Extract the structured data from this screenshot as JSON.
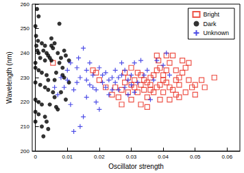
{
  "chart_data": {
    "type": "scatter",
    "x_label": "Oscillator strength",
    "y_label": "Wavelength (nm)",
    "xlim": [
      -0.001,
      0.064
    ],
    "xticks": [
      0,
      0.01,
      0.02,
      0.03,
      0.04,
      0.05,
      0.06
    ],
    "ylim": [
      200,
      260
    ],
    "yticks": [
      200,
      210,
      220,
      230,
      240,
      250,
      260
    ],
    "grid": false,
    "legend": "top-right",
    "series": [
      {
        "name": "Bright",
        "color": "#e8291c",
        "marker": "square",
        "x": [
          0.0055,
          0.018,
          0.019,
          0.024,
          0.026,
          0.025,
          0.027,
          0.028,
          0.029,
          0.03,
          0.031,
          0.032,
          0.033,
          0.034,
          0.035,
          0.036,
          0.037,
          0.038,
          0.039,
          0.0385,
          0.04,
          0.041,
          0.042,
          0.043,
          0.044,
          0.045,
          0.046,
          0.047,
          0.048,
          0.049,
          0.05,
          0.052,
          0.056,
          0.033,
          0.035,
          0.036,
          0.039,
          0.04,
          0.042,
          0.044,
          0.045,
          0.047,
          0.043,
          0.042,
          0.041,
          0.037,
          0.038,
          0.034,
          0.032,
          0.03,
          0.031,
          0.029,
          0.027,
          0.035,
          0.046,
          0.048,
          0.045,
          0.04,
          0.039,
          0.044,
          0.05,
          0.053,
          0.036,
          0.038,
          0.041,
          0.033,
          0.03,
          0.028,
          0.022,
          0.02
        ],
        "values": [
          236,
          233,
          232,
          223,
          222,
          226,
          225,
          228,
          230,
          227,
          229,
          232,
          231,
          229,
          228,
          227,
          231,
          239,
          234,
          237,
          229,
          228,
          226,
          225,
          233,
          230,
          232,
          234,
          229,
          226,
          227,
          229,
          230,
          219,
          222,
          225,
          221,
          224,
          221,
          223,
          222,
          224,
          239,
          236,
          233,
          224,
          226,
          225,
          224,
          221,
          226,
          224,
          219,
          218,
          237,
          236,
          227,
          231,
          227,
          229,
          223,
          226,
          230,
          233,
          239,
          227,
          234,
          232,
          226,
          229
        ]
      },
      {
        "name": "Dark",
        "color": "#000000",
        "marker": "circle",
        "x": [
          0.0005,
          0.001,
          0.0,
          0.0002,
          0.0008,
          0.0003,
          0.0006,
          0.001,
          0.0015,
          0.0,
          0.002,
          0.003,
          0.0025,
          0.0035,
          0.004,
          0.0045,
          0.005,
          0.006,
          0.005,
          0.0055,
          0.003,
          0.0,
          0.001,
          0.002,
          0.0035,
          0.004,
          0.0,
          0.0015,
          0.003,
          0.004,
          0.0055,
          0.006,
          0.0,
          0.001,
          0.002,
          0.0045,
          0.0065,
          0.007,
          0.0,
          0.001,
          0.003,
          0.0035,
          0.0,
          0.002,
          0.004,
          0.0025,
          0.007,
          0.008,
          0.0075,
          0.009,
          0.0085,
          0.0095,
          0.0105,
          0.009,
          0.0065,
          0.006,
          0.008,
          0.0105,
          0.0095,
          0.0075,
          0.0085,
          0.005
        ],
        "values": [
          258,
          255,
          251,
          247,
          245,
          243,
          241,
          240,
          238,
          236,
          244,
          243,
          241,
          240,
          239,
          238,
          246,
          244,
          243,
          242,
          237,
          234,
          233,
          232,
          231,
          229,
          228,
          227,
          226,
          225,
          224,
          222,
          221,
          220,
          219,
          219,
          218,
          217,
          216,
          215,
          214,
          212,
          212,
          210,
          209,
          206,
          240,
          238,
          236,
          241,
          234,
          239,
          237,
          230,
          232,
          229,
          224,
          228,
          221,
          252,
          231,
          237
        ]
      },
      {
        "name": "Unknown",
        "color": "#2020e0",
        "marker": "plus",
        "x": [
          0.008,
          0.009,
          0.01,
          0.011,
          0.012,
          0.012,
          0.013,
          0.014,
          0.0135,
          0.015,
          0.016,
          0.016,
          0.017,
          0.018,
          0.019,
          0.019,
          0.02,
          0.021,
          0.021,
          0.022,
          0.023,
          0.023,
          0.024,
          0.025,
          0.025,
          0.026,
          0.027,
          0.027,
          0.028,
          0.029,
          0.029,
          0.03,
          0.031,
          0.031,
          0.032,
          0.033,
          0.034,
          0.035,
          0.036,
          0.037,
          0.038,
          0.04,
          0.041,
          0.042,
          0.015,
          0.014,
          0.011,
          0.006,
          0.007,
          0.01,
          0.013,
          0.017,
          0.02,
          0.022,
          0.026,
          0.028,
          0.03,
          0.018,
          0.024,
          0.016
        ],
        "values": [
          230,
          226,
          233,
          236,
          225,
          208,
          228,
          230,
          238,
          242,
          229,
          222,
          227,
          231,
          225,
          220,
          234,
          228,
          231,
          226,
          229,
          223,
          230,
          233,
          228,
          225,
          231,
          236,
          226,
          229,
          223,
          231,
          236,
          224,
          228,
          237,
          231,
          233,
          221,
          229,
          237,
          235,
          240,
          231,
          214,
          210,
          219,
          226,
          223,
          229,
          234,
          236,
          217,
          232,
          230,
          233,
          227,
          226,
          225,
          233
        ]
      }
    ]
  }
}
